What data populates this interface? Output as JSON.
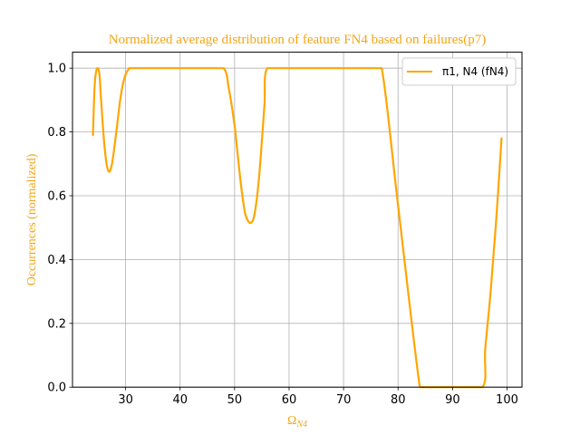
{
  "chart_data": {
    "type": "line",
    "title": "Normalized average distribution of feature FN4 based on failures(p7)",
    "xlabel": {
      "base": "Ω",
      "sub": "N4"
    },
    "ylabel": "Occurrences (normalized)",
    "xlim": [
      20.25,
      102.75
    ],
    "ylim": [
      0,
      1.05
    ],
    "xticks": [
      30,
      40,
      50,
      60,
      70,
      80,
      90,
      100
    ],
    "yticks": [
      0.0,
      0.2,
      0.4,
      0.6,
      0.8,
      1.0
    ],
    "xtick_labels": [
      "30",
      "40",
      "50",
      "60",
      "70",
      "80",
      "90",
      "100"
    ],
    "ytick_labels": [
      "0.0",
      "0.2",
      "0.4",
      "0.6",
      "0.8",
      "1.0"
    ],
    "grid": true,
    "legend": {
      "placement": "upper-right"
    },
    "text_color": "#f5a516",
    "series": [
      {
        "name": "π1, N4 (fN4)",
        "color": "#ffa500",
        "x": [
          24,
          24.3,
          24.6,
          24.9,
          25.2,
          25.5,
          26,
          26.5,
          27,
          27.5,
          28,
          28.5,
          29,
          29.5,
          30,
          30.5,
          31,
          35,
          40,
          45,
          48,
          49,
          50,
          50.5,
          51,
          51.5,
          52,
          52.5,
          53,
          53.5,
          54,
          54.5,
          55,
          55.5,
          56,
          60,
          65,
          70,
          75,
          77,
          80,
          84,
          85,
          90,
          95.5,
          96,
          97,
          98,
          99
        ],
        "y": [
          0.79,
          0.94,
          0.99,
          1.0,
          0.98,
          0.9,
          0.78,
          0.7,
          0.675,
          0.7,
          0.76,
          0.83,
          0.9,
          0.95,
          0.98,
          0.995,
          1.0,
          1.0,
          1.0,
          1.0,
          1.0,
          0.93,
          0.82,
          0.74,
          0.66,
          0.59,
          0.54,
          0.52,
          0.515,
          0.53,
          0.58,
          0.66,
          0.77,
          0.89,
          1.0,
          1.0,
          1.0,
          1.0,
          1.0,
          1.0,
          0.57,
          0.0,
          0.0,
          0.0,
          0.0,
          0.12,
          0.3,
          0.52,
          0.78
        ]
      }
    ]
  }
}
